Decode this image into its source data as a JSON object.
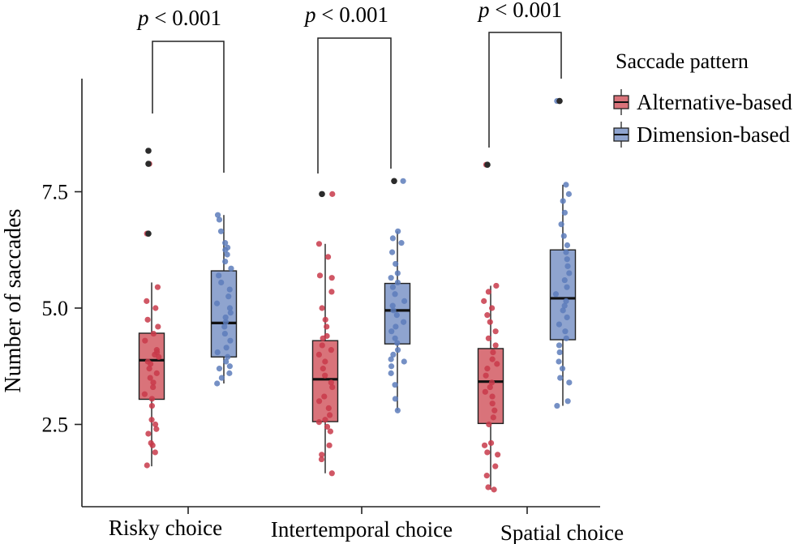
{
  "chart_data": {
    "type": "box",
    "ylabel": "Number of saccades",
    "xlabel": "",
    "ylim": [
      0.9,
      9.9
    ],
    "yticks": [
      2.5,
      5.0,
      7.5
    ],
    "ytick_labels": [
      "2.5",
      "5.0",
      "7.5"
    ],
    "categories": [
      "Risky choice",
      "Intertemporal choice",
      "Spatial choice"
    ],
    "legend": {
      "title": "Saccade pattern",
      "placement": "top-right",
      "items": [
        "Alternative-based",
        "Dimension-based"
      ]
    },
    "colors": {
      "Alternative-based": "#d9737a",
      "Dimension-based": "#8fa4cf",
      "alt_point": "#c8394a",
      "dim_point": "#5d7dbb",
      "outlier": "#2b2b2b"
    },
    "annotation": {
      "p": "p",
      "rest": " < 0.001"
    },
    "series": [
      {
        "name": "Alternative-based",
        "boxes": [
          {
            "category": "Risky choice",
            "whislo": 1.6,
            "q1": 3.04,
            "med": 3.88,
            "q3": 4.46,
            "whishi": 5.55,
            "outliers": [
              6.6,
              8.1,
              8.38
            ],
            "points": [
              1.62,
              1.9,
              2.05,
              2.1,
              2.3,
              2.4,
              2.5,
              2.6,
              2.9,
              3.05,
              3.15,
              3.3,
              3.4,
              3.5,
              3.6,
              3.7,
              3.8,
              3.85,
              3.95,
              4.0,
              4.05,
              4.1,
              4.3,
              4.45,
              4.6,
              4.75,
              5.0,
              5.15,
              5.45,
              6.6,
              8.1
            ]
          },
          {
            "category": "Intertemporal choice",
            "whislo": 1.45,
            "q1": 2.56,
            "med": 3.47,
            "q3": 4.3,
            "whishi": 6.38,
            "outliers": [
              7.45
            ],
            "points": [
              1.45,
              1.75,
              1.85,
              2.05,
              2.35,
              2.45,
              2.55,
              2.6,
              2.7,
              2.85,
              3.0,
              3.1,
              3.3,
              3.4,
              3.55,
              3.7,
              3.85,
              4.0,
              4.1,
              4.2,
              4.35,
              4.4,
              4.6,
              4.75,
              5.0,
              5.35,
              5.65,
              5.7,
              6.1,
              6.38,
              7.45
            ]
          },
          {
            "category": "Spatial choice",
            "whislo": 1.1,
            "q1": 2.52,
            "med": 3.42,
            "q3": 4.13,
            "whishi": 5.48,
            "outliers": [
              8.08
            ],
            "points": [
              1.1,
              1.15,
              1.4,
              1.6,
              1.85,
              1.9,
              2.05,
              2.1,
              2.5,
              2.65,
              2.8,
              2.95,
              3.1,
              3.2,
              3.3,
              3.4,
              3.55,
              3.7,
              3.8,
              3.9,
              4.05,
              4.2,
              4.35,
              4.5,
              4.7,
              4.85,
              5.0,
              5.15,
              5.35,
              5.48,
              8.08
            ]
          }
        ]
      },
      {
        "name": "Dimension-based",
        "boxes": [
          {
            "category": "Risky choice",
            "whislo": 3.38,
            "q1": 3.95,
            "med": 4.68,
            "q3": 5.8,
            "whishi": 7.0,
            "outliers": [],
            "points": [
              3.38,
              3.5,
              3.6,
              3.7,
              3.75,
              3.85,
              3.95,
              4.05,
              4.15,
              4.3,
              4.45,
              4.6,
              4.7,
              4.8,
              4.9,
              5.0,
              5.1,
              5.25,
              5.4,
              5.55,
              5.7,
              5.85,
              6.0,
              6.15,
              6.25,
              6.3,
              6.4,
              6.65,
              6.9,
              7.0
            ]
          },
          {
            "category": "Intertemporal choice",
            "whislo": 2.8,
            "q1": 4.23,
            "med": 4.95,
            "q3": 5.53,
            "whishi": 6.65,
            "outliers": [
              7.73
            ],
            "points": [
              2.8,
              3.05,
              3.35,
              3.6,
              3.75,
              3.85,
              3.9,
              4.0,
              4.1,
              4.25,
              4.35,
              4.5,
              4.6,
              4.7,
              4.85,
              4.95,
              5.05,
              5.15,
              5.3,
              5.45,
              5.55,
              5.65,
              5.75,
              5.95,
              6.2,
              6.4,
              6.5,
              6.65,
              7.73
            ]
          },
          {
            "category": "Spatial choice",
            "whislo": 2.9,
            "q1": 4.32,
            "med": 5.21,
            "q3": 6.25,
            "whishi": 7.65,
            "outliers": [
              9.45
            ],
            "points": [
              2.9,
              3.0,
              3.4,
              3.5,
              3.7,
              3.85,
              4.05,
              4.2,
              4.35,
              4.5,
              4.65,
              4.8,
              4.95,
              5.05,
              5.15,
              5.3,
              5.45,
              5.6,
              5.75,
              5.9,
              6.05,
              6.2,
              6.35,
              6.55,
              6.8,
              7.05,
              7.3,
              7.45,
              7.65,
              9.45
            ]
          }
        ]
      }
    ]
  }
}
